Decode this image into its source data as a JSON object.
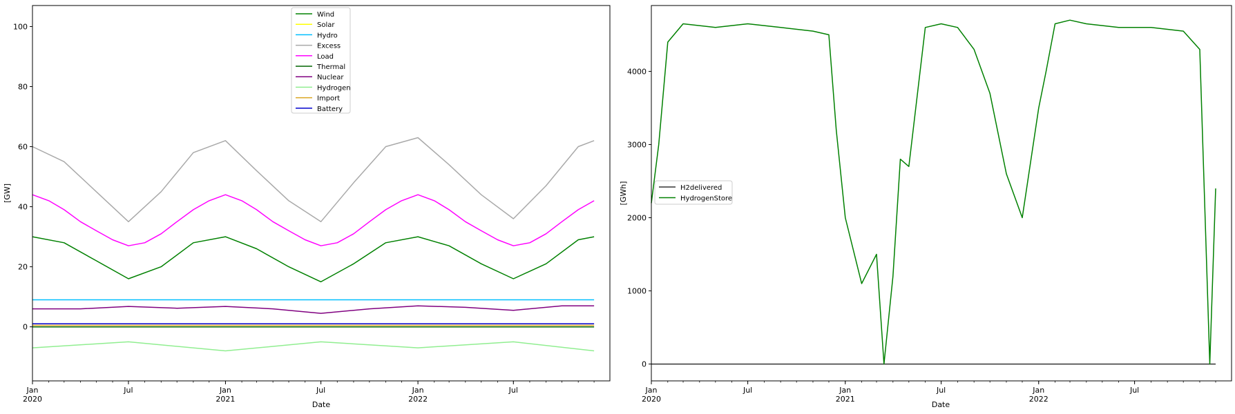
{
  "chart_data": [
    {
      "type": "line",
      "xlabel": "Date",
      "ylabel": "[GW]",
      "x_range": [
        "2020-01",
        "2022-12"
      ],
      "ylim": [
        -18,
        107
      ],
      "yticks": [
        0,
        20,
        40,
        60,
        80,
        100
      ],
      "xticks": [
        {
          "date": "2020-01",
          "label": "Jan",
          "year": "2020"
        },
        {
          "date": "2020-07",
          "label": "Jul",
          "year": ""
        },
        {
          "date": "2021-01",
          "label": "Jan",
          "year": "2021"
        },
        {
          "date": "2021-07",
          "label": "Jul",
          "year": ""
        },
        {
          "date": "2022-01",
          "label": "Jan",
          "year": "2022"
        },
        {
          "date": "2022-07",
          "label": "Jul",
          "year": ""
        }
      ],
      "legend": "top-center",
      "grid": false,
      "series": [
        {
          "name": "Wind",
          "color": "#008000",
          "x": [
            "2020-01",
            "2020-03",
            "2020-05",
            "2020-07",
            "2020-09",
            "2020-11",
            "2021-01",
            "2021-03",
            "2021-05",
            "2021-07",
            "2021-09",
            "2021-11",
            "2022-01",
            "2022-03",
            "2022-05",
            "2022-07",
            "2022-09",
            "2022-11",
            "2022-12"
          ],
          "values": [
            30,
            28,
            22,
            16,
            20,
            28,
            30,
            26,
            20,
            15,
            21,
            28,
            30,
            27,
            21,
            16,
            21,
            29,
            30
          ]
        },
        {
          "name": "Solar",
          "color": "#ffff00",
          "x": [
            "2020-01",
            "2022-12"
          ],
          "values": [
            0,
            0
          ]
        },
        {
          "name": "Hydro",
          "color": "#00bfff",
          "x": [
            "2020-01",
            "2020-07",
            "2021-01",
            "2021-07",
            "2022-01",
            "2022-07",
            "2022-12"
          ],
          "values": [
            9,
            9,
            9,
            9,
            9,
            9,
            9
          ]
        },
        {
          "name": "Excess",
          "color": "#a9a9a9",
          "x": [
            "2020-01",
            "2020-03",
            "2020-05",
            "2020-07",
            "2020-09",
            "2020-11",
            "2021-01",
            "2021-03",
            "2021-05",
            "2021-07",
            "2021-09",
            "2021-11",
            "2022-01",
            "2022-03",
            "2022-05",
            "2022-07",
            "2022-09",
            "2022-11",
            "2022-12"
          ],
          "values": [
            60,
            55,
            45,
            35,
            45,
            58,
            62,
            52,
            42,
            35,
            48,
            60,
            63,
            54,
            44,
            36,
            47,
            60,
            62
          ]
        },
        {
          "name": "Load",
          "color": "#ff00ff",
          "x": [
            "2020-01",
            "2020-02",
            "2020-03",
            "2020-04",
            "2020-05",
            "2020-06",
            "2020-07",
            "2020-08",
            "2020-09",
            "2020-10",
            "2020-11",
            "2020-12",
            "2021-01",
            "2021-02",
            "2021-03",
            "2021-04",
            "2021-05",
            "2021-06",
            "2021-07",
            "2021-08",
            "2021-09",
            "2021-10",
            "2021-11",
            "2021-12",
            "2022-01",
            "2022-02",
            "2022-03",
            "2022-04",
            "2022-05",
            "2022-06",
            "2022-07",
            "2022-08",
            "2022-09",
            "2022-10",
            "2022-11",
            "2022-12"
          ],
          "values": [
            44,
            42,
            39,
            35,
            32,
            29,
            27,
            28,
            31,
            35,
            39,
            42,
            44,
            42,
            39,
            35,
            32,
            29,
            27,
            28,
            31,
            35,
            39,
            42,
            44,
            42,
            39,
            35,
            32,
            29,
            27,
            28,
            31,
            35,
            39,
            42
          ]
        },
        {
          "name": "Thermal",
          "color": "#006400",
          "x": [
            "2020-01",
            "2022-12"
          ],
          "values": [
            0,
            0
          ]
        },
        {
          "name": "Nuclear",
          "color": "#800080",
          "x": [
            "2020-01",
            "2020-04",
            "2020-07",
            "2020-10",
            "2021-01",
            "2021-04",
            "2021-07",
            "2021-10",
            "2022-01",
            "2022-04",
            "2022-07",
            "2022-10",
            "2022-12"
          ],
          "values": [
            6,
            6,
            6.8,
            6.2,
            6.8,
            6,
            4.5,
            6,
            7,
            6.5,
            5.5,
            7,
            7
          ]
        },
        {
          "name": "Hydrogen",
          "color": "#90ee90",
          "x": [
            "2020-01",
            "2020-07",
            "2021-01",
            "2021-07",
            "2022-01",
            "2022-07",
            "2022-12"
          ],
          "values": [
            -7,
            -5,
            -8,
            -5,
            -7,
            -5,
            -8
          ]
        },
        {
          "name": "Import",
          "color": "#daa520",
          "x": [
            "2020-01",
            "2022-12"
          ],
          "values": [
            0.5,
            0.5
          ]
        },
        {
          "name": "Battery",
          "color": "#0000cd",
          "x": [
            "2020-01",
            "2022-12"
          ],
          "values": [
            1,
            1
          ]
        }
      ]
    },
    {
      "type": "line",
      "xlabel": "Date",
      "ylabel": "[GWh]",
      "x_range": [
        "2020-01",
        "2022-12"
      ],
      "ylim": [
        -230,
        4900
      ],
      "yticks": [
        0,
        1000,
        2000,
        3000,
        4000
      ],
      "xticks": [
        {
          "date": "2020-01",
          "label": "Jan",
          "year": "2020"
        },
        {
          "date": "2020-07",
          "label": "Jul",
          "year": ""
        },
        {
          "date": "2021-01",
          "label": "Jan",
          "year": "2021"
        },
        {
          "date": "2021-07",
          "label": "Jul",
          "year": ""
        },
        {
          "date": "2022-01",
          "label": "Jan",
          "year": "2022"
        },
        {
          "date": "2022-07",
          "label": "Jul",
          "year": ""
        }
      ],
      "legend": "center-left",
      "grid": false,
      "series": [
        {
          "name": "H2delivered",
          "color": "#333333",
          "x": [
            "2020-01",
            "2022-12"
          ],
          "values": [
            0,
            0
          ]
        },
        {
          "name": "HydrogenStore",
          "color": "#008000",
          "x": [
            "2020-01",
            "2020-01-15",
            "2020-02",
            "2020-03",
            "2020-05",
            "2020-07",
            "2020-09",
            "2020-11",
            "2020-12",
            "2020-12-15",
            "2021-01",
            "2021-02",
            "2021-03",
            "2021-03-15",
            "2021-04",
            "2021-04-15",
            "2021-05",
            "2021-06",
            "2021-07",
            "2021-08",
            "2021-09",
            "2021-10",
            "2021-11",
            "2021-12",
            "2022-01",
            "2022-01-15",
            "2022-02",
            "2022-03",
            "2022-04",
            "2022-06",
            "2022-08",
            "2022-10",
            "2022-11",
            "2022-11-20",
            "2022-12"
          ],
          "values": [
            2200,
            3000,
            4400,
            4650,
            4600,
            4650,
            4600,
            4550,
            4500,
            3200,
            2000,
            1100,
            1500,
            0,
            1200,
            2800,
            2700,
            4600,
            4650,
            4600,
            4300,
            3700,
            2600,
            2000,
            3500,
            4000,
            4650,
            4700,
            4650,
            4600,
            4600,
            4550,
            4300,
            0,
            2400
          ]
        }
      ]
    }
  ]
}
